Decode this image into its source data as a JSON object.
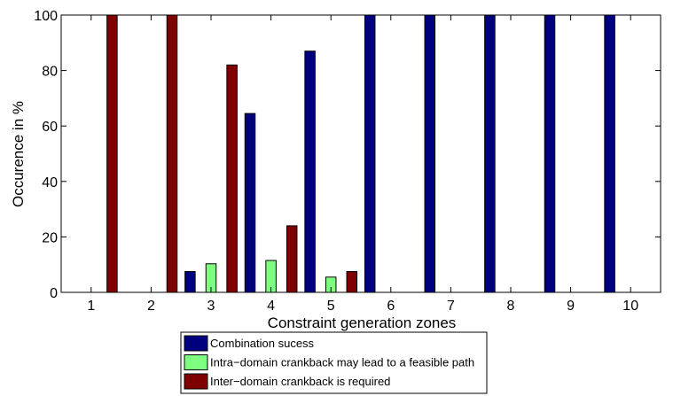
{
  "chart_data": {
    "type": "bar",
    "title": "",
    "xlabel": "Constraint generation zones",
    "ylabel": "Occurence in %",
    "categories": [
      "1",
      "2",
      "3",
      "4",
      "5",
      "6",
      "7",
      "8",
      "9",
      "10"
    ],
    "ylim": [
      0,
      100
    ],
    "yticks": [
      "0",
      "20",
      "40",
      "60",
      "80",
      "100"
    ],
    "grid": false,
    "legend_position": "bottom",
    "series": [
      {
        "name": "Combination sucess",
        "color": "#00007f",
        "values": [
          0,
          0,
          7.5,
          64.5,
          87,
          100,
          100,
          100,
          100,
          100
        ]
      },
      {
        "name": "Intra−domain crankback may lead to a feasible path",
        "color": "#7fff7f",
        "values": [
          0,
          0,
          10.3,
          11.5,
          5.5,
          0,
          0,
          0,
          0,
          0
        ]
      },
      {
        "name": "Inter−domain crankback is required",
        "color": "#7f0000",
        "values": [
          100,
          100,
          82,
          24,
          7.5,
          0,
          0,
          0,
          0,
          0
        ]
      }
    ]
  }
}
